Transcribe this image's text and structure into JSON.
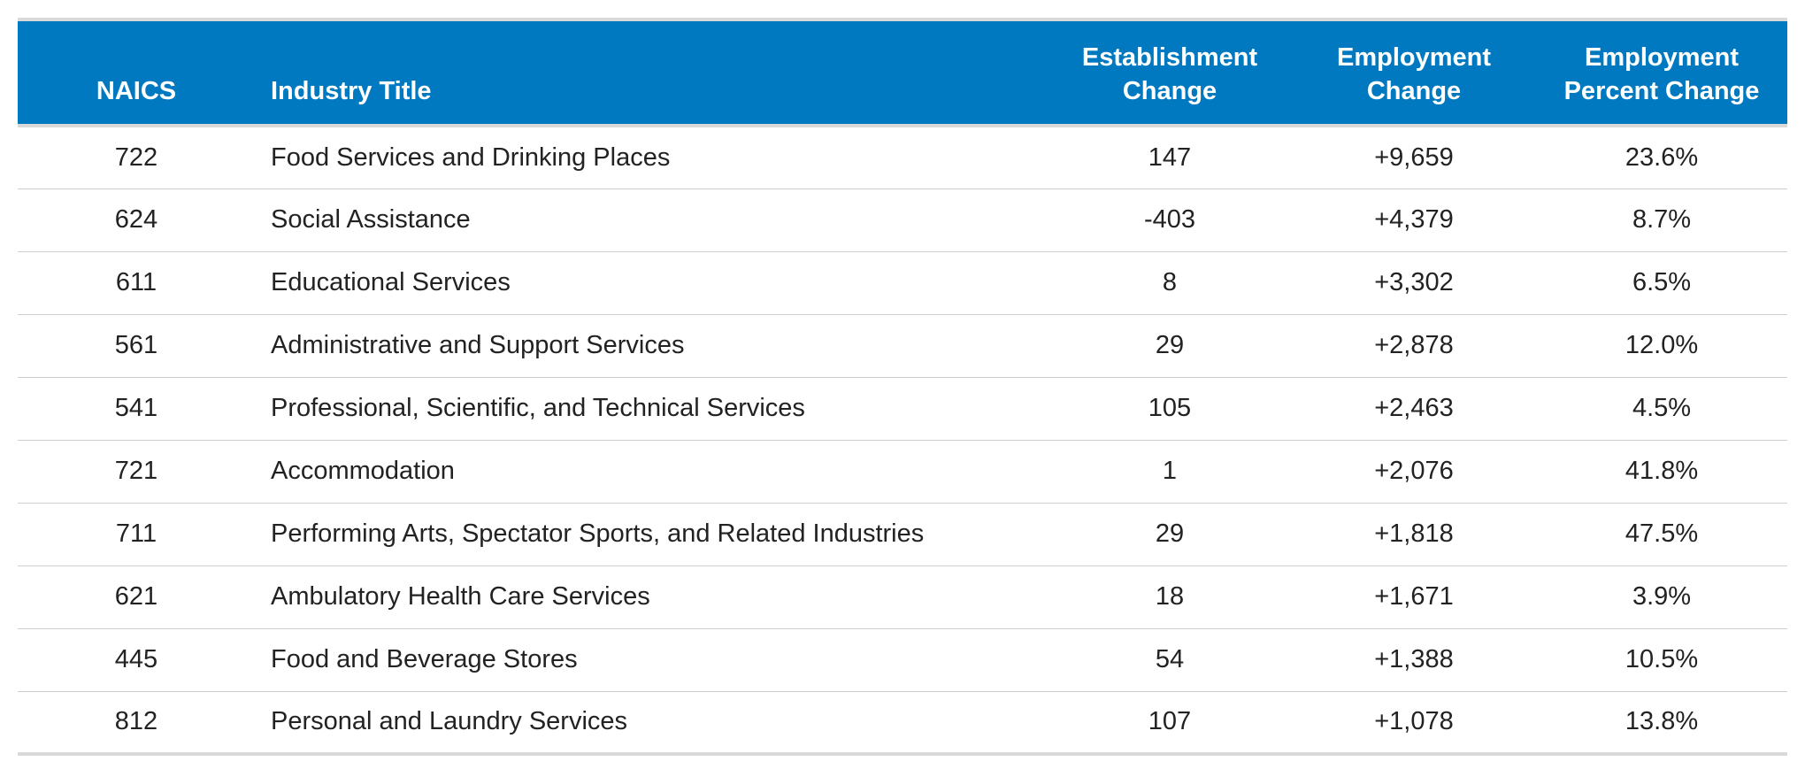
{
  "table": {
    "headers": {
      "naics": [
        "NAICS"
      ],
      "title": [
        "Industry Title"
      ],
      "establishment": [
        "Establishment",
        "Change"
      ],
      "employment": [
        "Employment",
        "Change"
      ],
      "percent": [
        "Employment",
        "Percent Change"
      ]
    },
    "rows": [
      {
        "naics": "722",
        "title": "Food Services and Drinking Places",
        "establishment_change": "147",
        "employment_change": "+9,659",
        "percent_change": "23.6%"
      },
      {
        "naics": "624",
        "title": "Social Assistance",
        "establishment_change": "-403",
        "employment_change": "+4,379",
        "percent_change": "8.7%"
      },
      {
        "naics": "611",
        "title": "Educational Services",
        "establishment_change": "8",
        "employment_change": "+3,302",
        "percent_change": "6.5%"
      },
      {
        "naics": "561",
        "title": "Administrative and Support Services",
        "establishment_change": "29",
        "employment_change": "+2,878",
        "percent_change": "12.0%"
      },
      {
        "naics": "541",
        "title": "Professional, Scientific, and Technical Services",
        "establishment_change": "105",
        "employment_change": "+2,463",
        "percent_change": "4.5%"
      },
      {
        "naics": "721",
        "title": "Accommodation",
        "establishment_change": "1",
        "employment_change": "+2,076",
        "percent_change": "41.8%"
      },
      {
        "naics": "711",
        "title": "Performing Arts, Spectator Sports, and Related Industries",
        "establishment_change": "29",
        "employment_change": "+1,818",
        "percent_change": "47.5%"
      },
      {
        "naics": "621",
        "title": "Ambulatory Health Care Services",
        "establishment_change": "18",
        "employment_change": "+1,671",
        "percent_change": "3.9%"
      },
      {
        "naics": "445",
        "title": "Food and Beverage Stores",
        "establishment_change": "54",
        "employment_change": "+1,388",
        "percent_change": "10.5%"
      },
      {
        "naics": "812",
        "title": "Personal and Laundry Services",
        "establishment_change": "107",
        "employment_change": "+1,078",
        "percent_change": "13.8%"
      }
    ]
  },
  "colors": {
    "header_background": "#0079c1",
    "header_text": "#ffffff",
    "row_divider": "#cfcfcf",
    "outer_border": "#d9d9d9"
  }
}
